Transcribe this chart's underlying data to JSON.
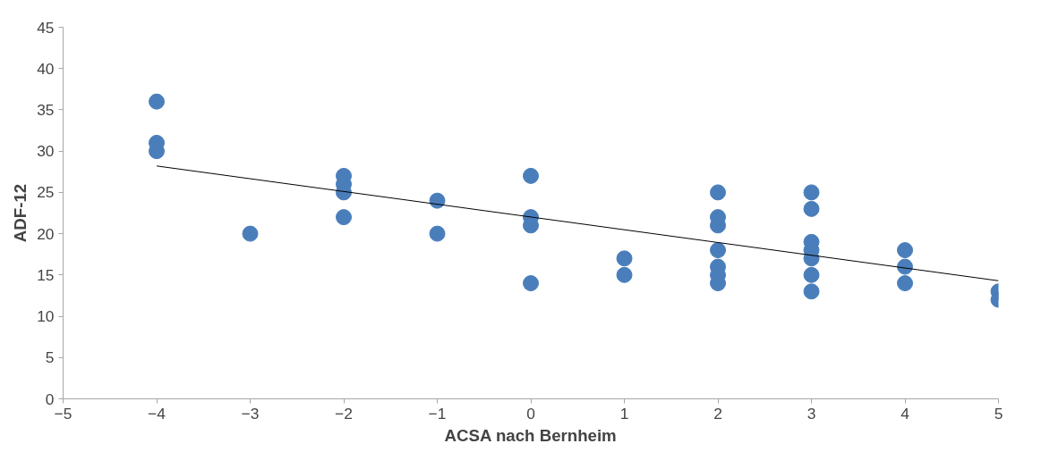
{
  "chart_data": {
    "type": "scatter",
    "xlabel": "ACSA nach Bernheim",
    "ylabel": "ADF-12",
    "xlim": [
      -5,
      5
    ],
    "ylim": [
      0,
      45
    ],
    "xticks": [
      -5,
      -4,
      -3,
      -2,
      -1,
      0,
      1,
      2,
      3,
      4,
      5
    ],
    "yticks": [
      0,
      5,
      10,
      15,
      20,
      25,
      30,
      35,
      40,
      45
    ],
    "grid": false,
    "series": [
      {
        "color": "#4a7ebb",
        "marker": "circle",
        "x": [
          -4,
          -4,
          -4,
          -3,
          -2,
          -2,
          -2,
          -2,
          -1,
          -1,
          0,
          0,
          0,
          0,
          1,
          1,
          2,
          2,
          2,
          2,
          2,
          2,
          2,
          3,
          3,
          3,
          3,
          3,
          3,
          3,
          4,
          4,
          4,
          5,
          5
        ],
        "values": [
          36,
          31,
          30,
          20,
          27,
          26,
          25,
          22,
          24,
          20,
          27,
          22,
          21,
          14,
          17,
          15,
          25,
          22,
          21,
          18,
          16,
          15,
          14,
          25,
          23,
          19,
          18,
          17,
          15,
          13,
          18,
          16,
          14,
          13,
          12
        ]
      },
      {
        "type": "line",
        "marker": "none",
        "color": "#000000",
        "x": [
          -4,
          5
        ],
        "values": [
          28.2,
          14.3
        ]
      }
    ]
  }
}
